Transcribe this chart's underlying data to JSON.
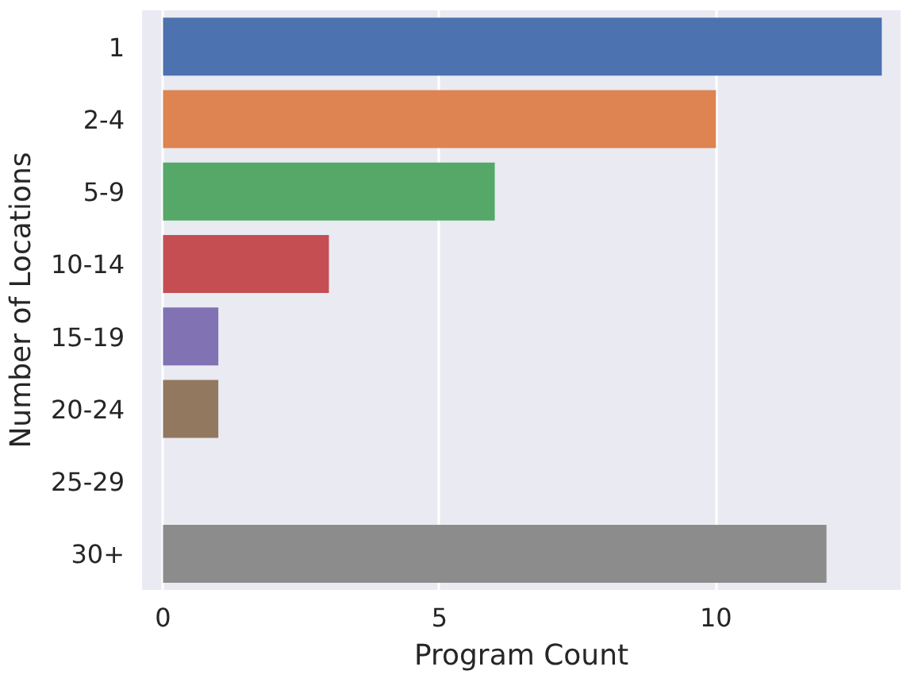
{
  "chart_data": {
    "type": "bar",
    "orientation": "horizontal",
    "xlabel": "Program Count",
    "ylabel": "Number of Locations",
    "categories": [
      "1",
      "2-4",
      "5-9",
      "10-14",
      "15-19",
      "20-24",
      "25-29",
      "30+"
    ],
    "values": [
      13,
      10,
      6,
      3,
      1,
      1,
      0,
      12
    ],
    "colors": [
      "#4c72b0",
      "#dd8452",
      "#55a868",
      "#c44e52",
      "#8172b3",
      "#937860",
      "#da8bc3",
      "#8c8c8c"
    ],
    "xlim": [
      -0.38,
      13.34
    ],
    "xticks": [
      0,
      5,
      10
    ],
    "grid": "x"
  }
}
